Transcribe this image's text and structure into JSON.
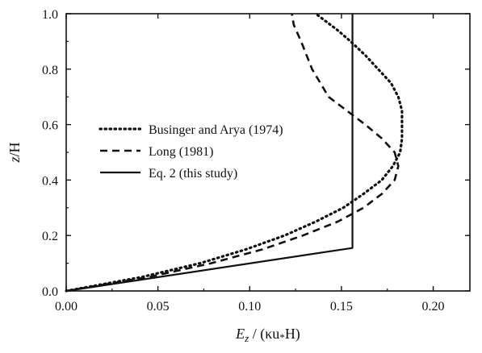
{
  "chart_data": {
    "type": "line",
    "title": "",
    "xlabel": {
      "main": "E",
      "sub": "z",
      "rest": " / (κu",
      "star": "*",
      "tail": "H)"
    },
    "ylabel": {
      "main": "z",
      "rest": "/H"
    },
    "xlim": [
      0.0,
      0.22
    ],
    "ylim": [
      0.0,
      1.0
    ],
    "x_ticks": [
      0.0,
      0.05,
      0.1,
      0.15,
      0.2
    ],
    "x_tick_labels": [
      "0.00",
      "0.05",
      "0.10",
      "0.15",
      "0.20"
    ],
    "y_ticks": [
      0.0,
      0.2,
      0.4,
      0.6,
      0.8,
      1.0
    ],
    "y_tick_labels": [
      "0.0",
      "0.2",
      "0.4",
      "0.6",
      "0.8",
      "1.0"
    ],
    "grid": false,
    "legend_position": "center-left",
    "series": [
      {
        "name": "Businger and Arya (1974)",
        "style": "dotted",
        "x": [
          0.0,
          0.041,
          0.073,
          0.098,
          0.119,
          0.136,
          0.151,
          0.162,
          0.172,
          0.178,
          0.182,
          0.183,
          0.183,
          0.183,
          0.181,
          0.177,
          0.17,
          0.163,
          0.155,
          0.148,
          0.142,
          0.138,
          0.136
        ],
        "y": [
          0.0,
          0.05,
          0.1,
          0.15,
          0.2,
          0.25,
          0.3,
          0.35,
          0.4,
          0.45,
          0.5,
          0.55,
          0.6,
          0.65,
          0.7,
          0.75,
          0.8,
          0.85,
          0.9,
          0.94,
          0.97,
          0.99,
          1.0
        ]
      },
      {
        "name": "Long (1981)",
        "style": "dashed",
        "x": [
          0.0,
          0.045,
          0.079,
          0.107,
          0.129,
          0.148,
          0.162,
          0.172,
          0.179,
          0.181,
          0.179,
          0.172,
          0.163,
          0.153,
          0.143,
          0.134,
          0.128,
          0.124,
          0.123
        ],
        "y": [
          0.0,
          0.05,
          0.1,
          0.15,
          0.2,
          0.25,
          0.3,
          0.35,
          0.4,
          0.45,
          0.5,
          0.55,
          0.6,
          0.65,
          0.7,
          0.8,
          0.9,
          0.96,
          1.0
        ]
      },
      {
        "name": "Eq. 2 (this study)",
        "style": "solid",
        "x": [
          0.0,
          0.156,
          0.156,
          0.156
        ],
        "y": [
          0.0,
          0.155,
          0.155,
          1.0
        ]
      }
    ]
  }
}
